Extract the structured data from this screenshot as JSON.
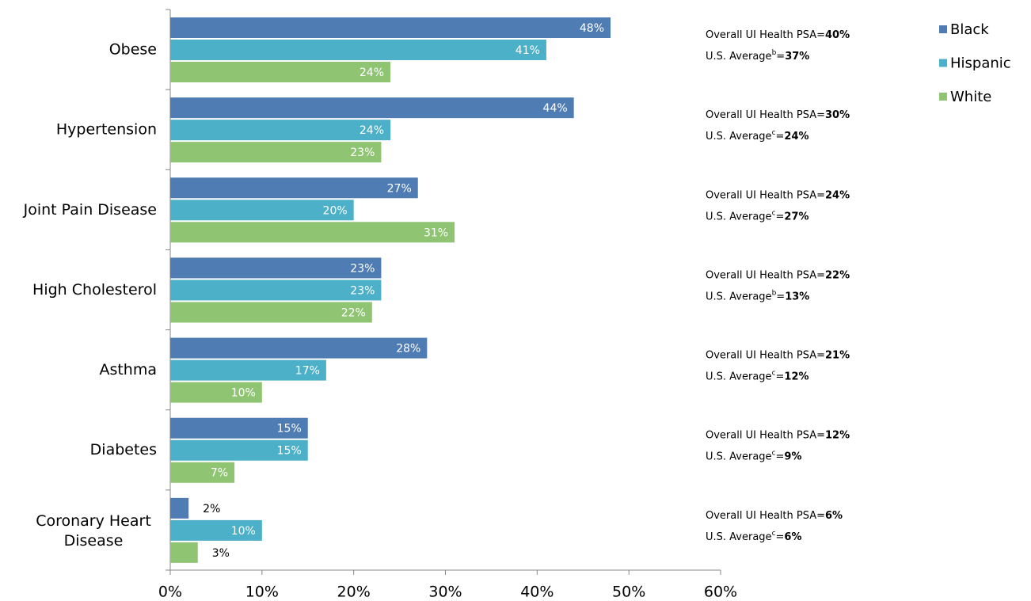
{
  "chart_data": {
    "type": "hbar",
    "categories": [
      "Obese",
      "Hypertension",
      "Joint Pain Disease",
      "High Cholesterol",
      "Asthma",
      "Diabetes",
      "Coronary Heart Disease"
    ],
    "series": [
      {
        "name": "Black",
        "color": "#4f7db3",
        "values": [
          48,
          44,
          27,
          23,
          28,
          15,
          2
        ],
        "value_labels": [
          "48%",
          "44%",
          "27%",
          "23%",
          "28%",
          "15%",
          "2%"
        ]
      },
      {
        "name": "Hispanic",
        "color": "#4bb0c8",
        "values": [
          41,
          24,
          20,
          23,
          17,
          15,
          10
        ],
        "value_labels": [
          "41%",
          "24%",
          "20%",
          "23%",
          "17%",
          "15%",
          "10%"
        ]
      },
      {
        "name": "White",
        "color": "#8fc472",
        "values": [
          24,
          23,
          31,
          22,
          10,
          7,
          3
        ],
        "value_labels": [
          "24%",
          "23%",
          "31%",
          "22%",
          "10%",
          "7%",
          "3%"
        ]
      }
    ],
    "xlim": [
      0,
      60
    ],
    "xticks": [
      {
        "value": 0,
        "label": "0%"
      },
      {
        "value": 10,
        "label": "10%"
      },
      {
        "value": 20,
        "label": "20%"
      },
      {
        "value": 30,
        "label": "30%"
      },
      {
        "value": 40,
        "label": "40%"
      },
      {
        "value": 50,
        "label": "50%"
      },
      {
        "value": 60,
        "label": "60%"
      }
    ],
    "legend": "top-right",
    "annotation_psa_label": "Overall UI Health PSA=",
    "annotation_us_label": "U.S. Average",
    "annotation_equals": "=",
    "annotations": [
      {
        "psa": "40%",
        "note": "b",
        "us": "37%"
      },
      {
        "psa": "30%",
        "note": "c",
        "us": "24%"
      },
      {
        "psa": "24%",
        "note": "c",
        "us": "27%"
      },
      {
        "psa": "22%",
        "note": "b",
        "us": "13%"
      },
      {
        "psa": "21%",
        "note": "c",
        "us": "12%"
      },
      {
        "psa": "12%",
        "note": "c",
        "us": "9%"
      },
      {
        "psa": "6%",
        "note": "c",
        "us": "6%"
      }
    ]
  }
}
